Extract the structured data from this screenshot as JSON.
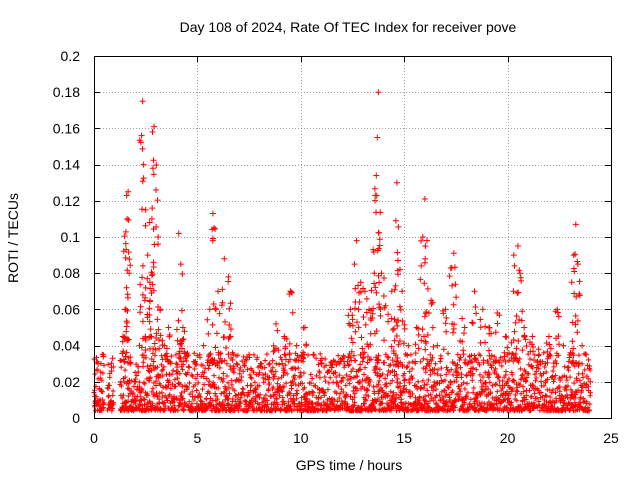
{
  "chart_data": {
    "type": "scatter",
    "title": "Day 108 of 2024, Rate Of TEC Index for receiver pove",
    "xlabel": "GPS time / hours",
    "ylabel": "ROTI / TECUs",
    "xlim": [
      0,
      25
    ],
    "ylim": [
      0,
      0.2
    ],
    "xticks": [
      0,
      5,
      10,
      15,
      20,
      25
    ],
    "xtick_labels": [
      "0",
      "5",
      "10",
      "15",
      "20",
      "25"
    ],
    "yticks": [
      0,
      0.02,
      0.04,
      0.06,
      0.08,
      0.1,
      0.12,
      0.14,
      0.16,
      0.18,
      0.2
    ],
    "ytick_labels": [
      "0",
      "0.02",
      "0.04",
      "0.06",
      "0.08",
      "0.1",
      "0.12",
      "0.14",
      "0.16",
      "0.18",
      "0.2"
    ],
    "grid": true,
    "marker": "+",
    "point_color": "#ff0000",
    "series": [
      {
        "points": [
          [
            0.05,
            0.012
          ],
          [
            0.2,
            0.03
          ],
          [
            0.3,
            0.022
          ],
          [
            0.4,
            0.01
          ],
          [
            0.45,
            0.034
          ],
          [
            0.7,
            0.018
          ],
          [
            0.8,
            0.008
          ],
          [
            0.85,
            0.026
          ],
          [
            0.9,
            0.033
          ],
          [
            1.3,
            0.02
          ],
          [
            1.4,
            0.045
          ],
          [
            1.5,
            0.06
          ],
          [
            1.55,
            0.093
          ],
          [
            1.6,
            0.11
          ],
          [
            1.65,
            0.125
          ],
          [
            1.7,
            0.08
          ],
          [
            1.75,
            0.03
          ],
          [
            1.8,
            0.015
          ],
          [
            2.0,
            0.02
          ],
          [
            2.2,
            0.04
          ],
          [
            2.3,
            0.156
          ],
          [
            2.35,
            0.175
          ],
          [
            2.4,
            0.14
          ],
          [
            2.5,
            0.115
          ],
          [
            2.6,
            0.09
          ],
          [
            2.7,
            0.075
          ],
          [
            2.8,
            0.11
          ],
          [
            2.85,
            0.138
          ],
          [
            2.9,
            0.161
          ],
          [
            3.0,
            0.126
          ],
          [
            3.1,
            0.1
          ],
          [
            3.2,
            0.06
          ],
          [
            3.4,
            0.04
          ],
          [
            3.6,
            0.05
          ],
          [
            4.1,
            0.102
          ],
          [
            4.2,
            0.085
          ],
          [
            4.3,
            0.05
          ],
          [
            4.6,
            0.028
          ],
          [
            4.9,
            0.03
          ],
          [
            5.3,
            0.04
          ],
          [
            5.6,
            0.06
          ],
          [
            5.75,
            0.113
          ],
          [
            5.8,
            0.105
          ],
          [
            6.0,
            0.07
          ],
          [
            6.3,
            0.088
          ],
          [
            6.5,
            0.078
          ],
          [
            6.6,
            0.045
          ],
          [
            6.9,
            0.03
          ],
          [
            7.5,
            0.035
          ],
          [
            8.0,
            0.025
          ],
          [
            8.5,
            0.03
          ],
          [
            8.8,
            0.052
          ],
          [
            9.2,
            0.045
          ],
          [
            9.5,
            0.07
          ],
          [
            9.8,
            0.04
          ],
          [
            10.2,
            0.05
          ],
          [
            10.6,
            0.035
          ],
          [
            11.0,
            0.03
          ],
          [
            11.5,
            0.028
          ],
          [
            12.0,
            0.033
          ],
          [
            12.4,
            0.06
          ],
          [
            12.6,
            0.085
          ],
          [
            12.7,
            0.098
          ],
          [
            12.9,
            0.075
          ],
          [
            13.1,
            0.07
          ],
          [
            13.3,
            0.06
          ],
          [
            13.5,
            0.093
          ],
          [
            13.6,
            0.123
          ],
          [
            13.65,
            0.134
          ],
          [
            13.7,
            0.155
          ],
          [
            13.75,
            0.18
          ],
          [
            13.9,
            0.08
          ],
          [
            14.1,
            0.062
          ],
          [
            14.4,
            0.07
          ],
          [
            14.6,
            0.109
          ],
          [
            14.65,
            0.13
          ],
          [
            14.7,
            0.087
          ],
          [
            14.9,
            0.07
          ],
          [
            15.2,
            0.04
          ],
          [
            15.6,
            0.05
          ],
          [
            15.9,
            0.1
          ],
          [
            16.0,
            0.121
          ],
          [
            16.1,
            0.098
          ],
          [
            16.3,
            0.065
          ],
          [
            16.6,
            0.04
          ],
          [
            17.0,
            0.06
          ],
          [
            17.3,
            0.083
          ],
          [
            17.4,
            0.091
          ],
          [
            17.8,
            0.055
          ],
          [
            18.4,
            0.07
          ],
          [
            18.8,
            0.06
          ],
          [
            19.1,
            0.05
          ],
          [
            19.5,
            0.058
          ],
          [
            19.9,
            0.045
          ],
          [
            20.3,
            0.09
          ],
          [
            20.5,
            0.095
          ],
          [
            20.6,
            0.08
          ],
          [
            20.8,
            0.05
          ],
          [
            21.2,
            0.045
          ],
          [
            21.5,
            0.038
          ],
          [
            22.0,
            0.045
          ],
          [
            22.4,
            0.06
          ],
          [
            22.7,
            0.04
          ],
          [
            23.1,
            0.075
          ],
          [
            23.2,
            0.09
          ],
          [
            23.3,
            0.107
          ],
          [
            23.4,
            0.085
          ],
          [
            23.6,
            0.04
          ],
          [
            23.8,
            0.035
          ],
          [
            24.0,
            0.02
          ]
        ]
      }
    ]
  }
}
